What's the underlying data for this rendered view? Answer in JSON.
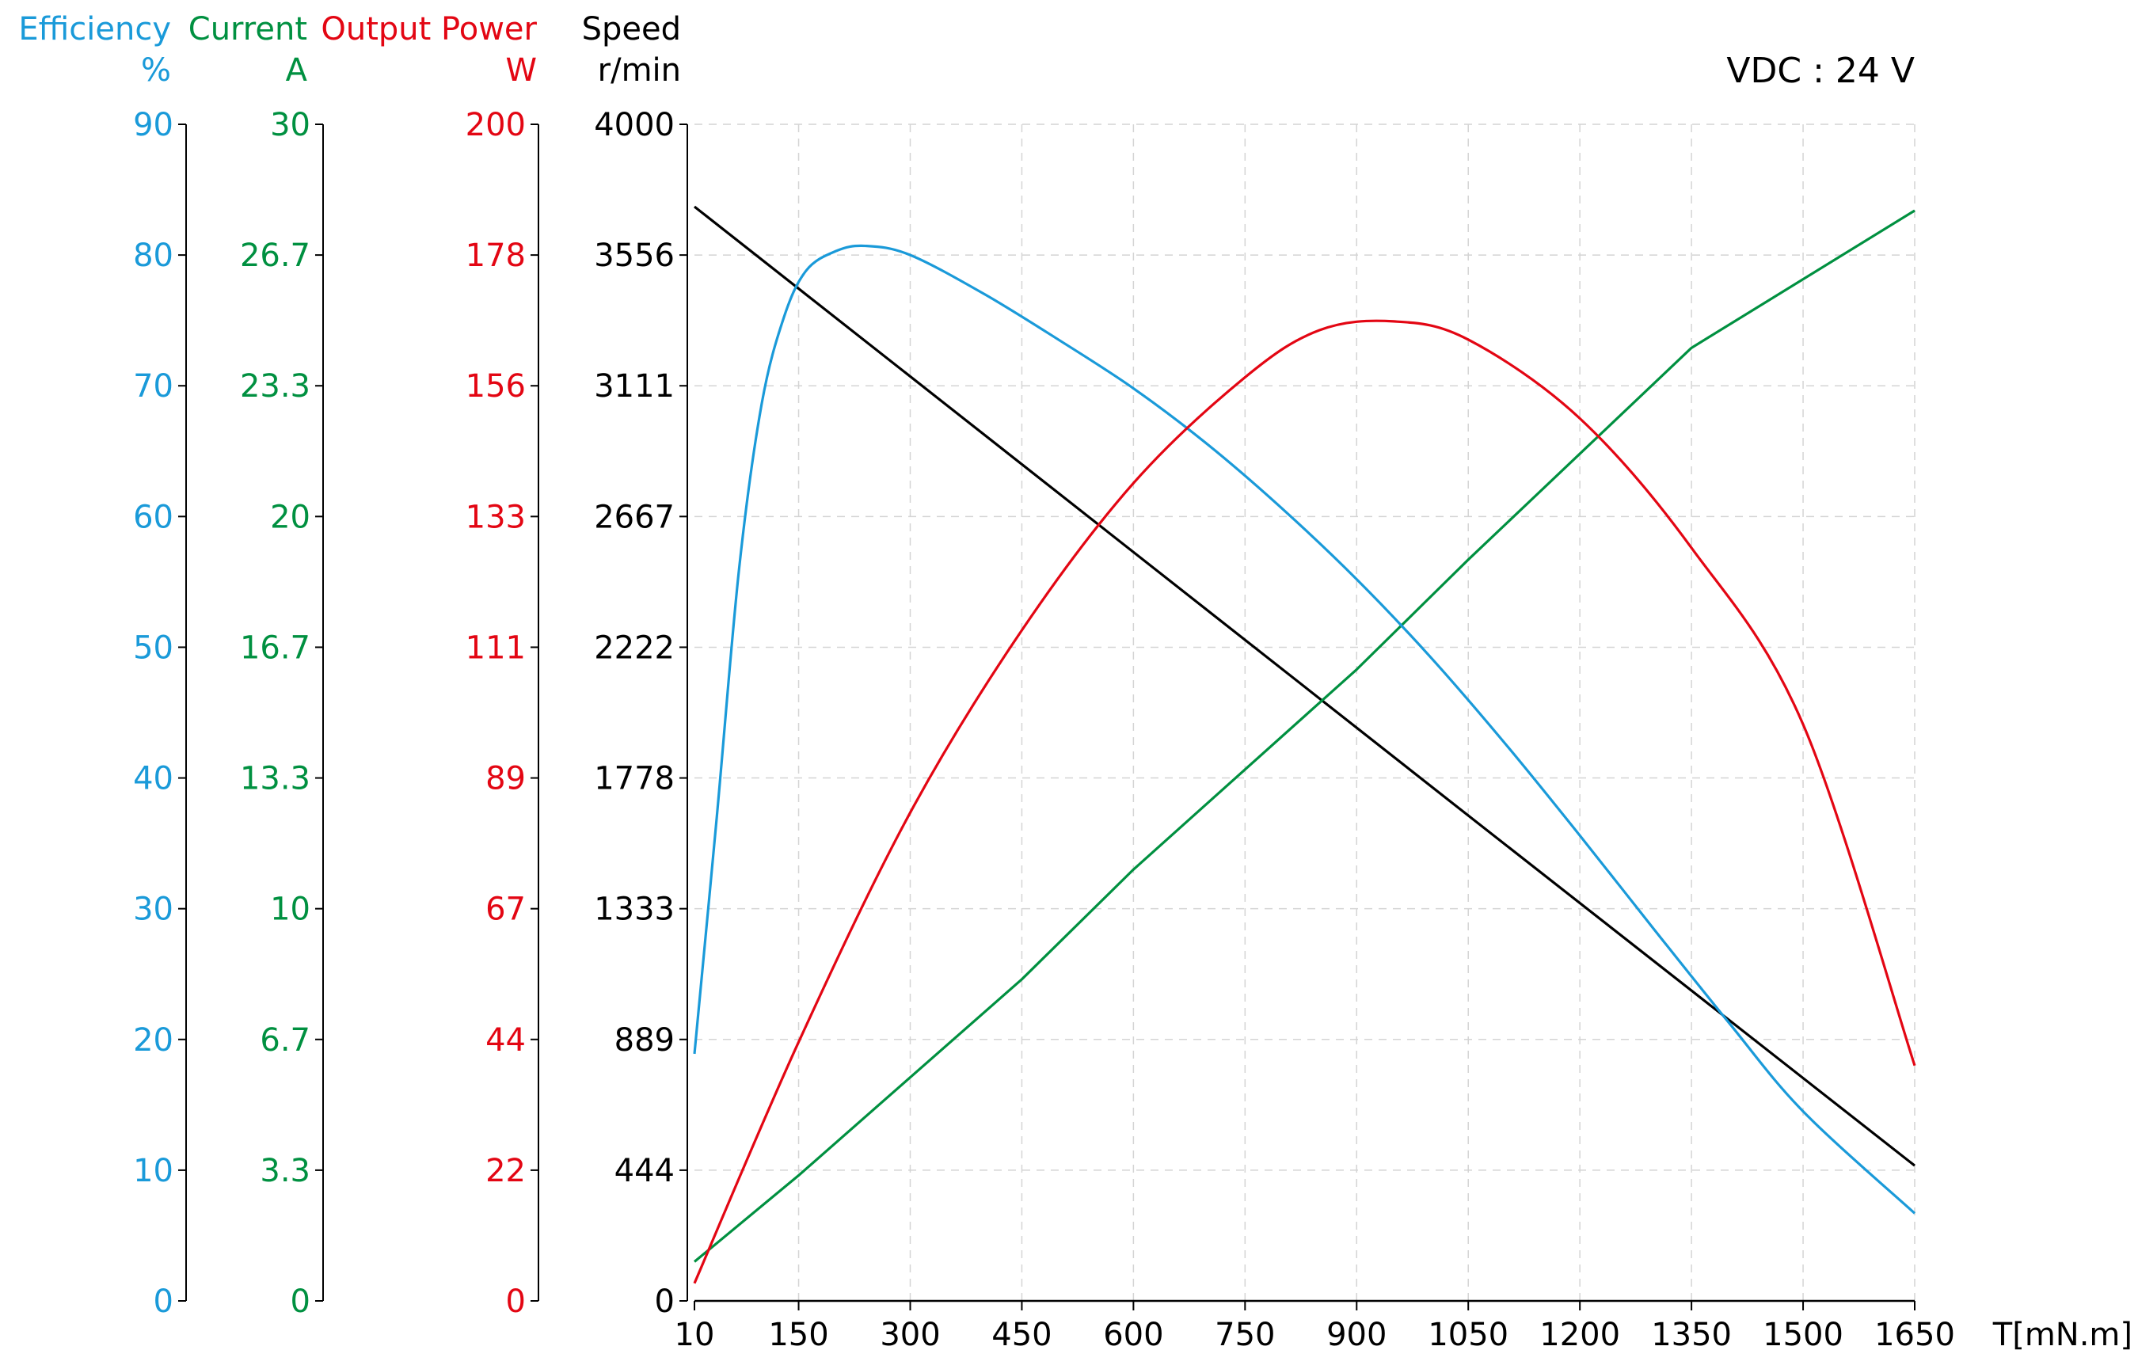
{
  "chart_data": {
    "type": "line",
    "annotation": "VDC : 24 V",
    "x_axis": {
      "label": "T[mN.m]",
      "ticks": [
        "10",
        "150",
        "300",
        "450",
        "600",
        "750",
        "900",
        "1050",
        "1200",
        "1350",
        "1500",
        "1650"
      ],
      "tick_values": [
        10,
        150,
        300,
        450,
        600,
        750,
        900,
        1050,
        1200,
        1350,
        1500,
        1650
      ],
      "range": [
        10,
        1650
      ]
    },
    "y_axes": [
      {
        "id": "efficiency",
        "title": "Efficiency",
        "unit": "%",
        "color": "#1a9ad9",
        "ticks": [
          "0",
          "10",
          "20",
          "30",
          "40",
          "50",
          "60",
          "70",
          "80",
          "90"
        ],
        "range": [
          0,
          90
        ]
      },
      {
        "id": "current",
        "title": "Current",
        "unit": "A",
        "color": "#009040",
        "ticks": [
          "0",
          "3.3",
          "6.7",
          "10",
          "13.3",
          "16.7",
          "20",
          "23.3",
          "26.7",
          "30"
        ],
        "range": [
          0,
          30
        ]
      },
      {
        "id": "power",
        "title": "Output Power",
        "unit": "W",
        "color": "#e30613",
        "ticks": [
          "0",
          "22",
          "44",
          "67",
          "89",
          "111",
          "133",
          "156",
          "178",
          "200"
        ],
        "range": [
          0,
          200
        ]
      },
      {
        "id": "speed",
        "title": "Speed",
        "unit": "r/min",
        "color": "#000000",
        "ticks": [
          "0",
          "444",
          "889",
          "1333",
          "1778",
          "2222",
          "2667",
          "3111",
          "3556",
          "4000"
        ],
        "range": [
          0,
          4000
        ]
      }
    ],
    "grid": true,
    "series": [
      {
        "axis": "speed",
        "color": "#000000",
        "points": [
          [
            10,
            3720
          ],
          [
            1050,
            1650
          ],
          [
            1650,
            460
          ]
        ]
      },
      {
        "axis": "current",
        "color": "#009040",
        "points": [
          [
            10,
            1.0
          ],
          [
            150,
            3.2
          ],
          [
            450,
            8.2
          ],
          [
            600,
            11.0
          ],
          [
            900,
            16.1
          ],
          [
            1050,
            18.9
          ],
          [
            1200,
            21.6
          ],
          [
            1350,
            24.3
          ],
          [
            1650,
            27.8
          ]
        ]
      },
      {
        "axis": "efficiency",
        "color": "#1a9ad9",
        "points": [
          [
            10,
            18.9
          ],
          [
            40,
            37
          ],
          [
            70,
            56
          ],
          [
            100,
            68.5
          ],
          [
            130,
            75.2
          ],
          [
            160,
            78.8
          ],
          [
            200,
            80.3
          ],
          [
            240,
            80.7
          ],
          [
            300,
            80
          ],
          [
            400,
            77
          ],
          [
            500,
            73.5
          ],
          [
            600,
            69.8
          ],
          [
            700,
            65.5
          ],
          [
            800,
            60.6
          ],
          [
            900,
            55.2
          ],
          [
            1000,
            49.2
          ],
          [
            1100,
            42.6
          ],
          [
            1200,
            35.6
          ],
          [
            1300,
            28.4
          ],
          [
            1400,
            21.3
          ],
          [
            1500,
            14.5
          ],
          [
            1650,
            6.7
          ]
        ]
      },
      {
        "axis": "power",
        "color": "#e30613",
        "points": [
          [
            10,
            3
          ],
          [
            150,
            44
          ],
          [
            300,
            83
          ],
          [
            450,
            114
          ],
          [
            600,
            139
          ],
          [
            750,
            157
          ],
          [
            850,
            165
          ],
          [
            950,
            166.5
          ],
          [
            1050,
            163.4
          ],
          [
            1200,
            150
          ],
          [
            1350,
            128
          ],
          [
            1500,
            98
          ],
          [
            1650,
            40
          ]
        ]
      }
    ]
  }
}
